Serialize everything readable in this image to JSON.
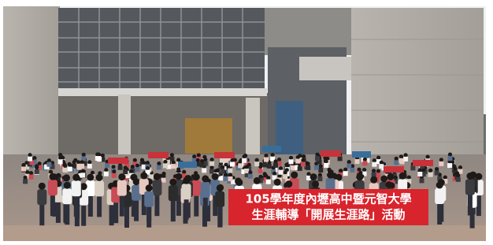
{
  "banner": {
    "lines": [
      "105學年度內壢高中暨元智大學",
      "生涯輔導「開展生涯路」活動"
    ]
  }
}
